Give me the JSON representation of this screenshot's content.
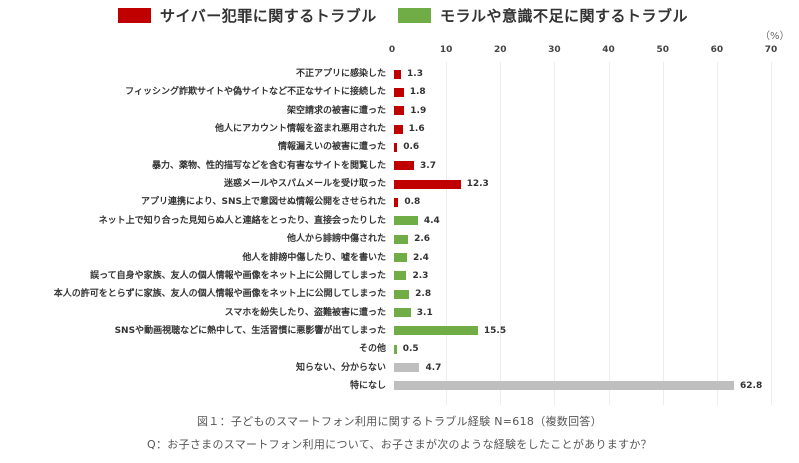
{
  "legend": [
    {
      "label": "サイバー犯罪に関するトラブル",
      "color": "#c00000"
    },
    {
      "label": "モラルや意識不足に関するトラブル",
      "color": "#70ad47"
    }
  ],
  "colors": {
    "cyber": "#c00000",
    "moral": "#70ad47",
    "other": "#bfbfbf"
  },
  "axis": {
    "unit": "（%）",
    "ticks": [
      "0",
      "10",
      "20",
      "30",
      "40",
      "50",
      "60",
      "70"
    ]
  },
  "chart_data": {
    "type": "bar",
    "orientation": "horizontal",
    "title": "図１：子どものスマートフォン利用に関するトラブル経験 N=618（複数回答）",
    "xlabel": "（%）",
    "xlim": [
      0,
      70
    ],
    "grid": true,
    "legend_position": "top",
    "categories": [
      "不正アプリに感染した",
      "フィッシング詐欺サイトや偽サイトなど不正なサイトに接続した",
      "架空請求の被害に遭った",
      "他人にアカウント情報を盗まれ悪用された",
      "情報漏えいの被害に遭った",
      "暴力、薬物、性的描写などを含む有害なサイトを閲覧した",
      "迷惑メールやスパムメールを受け取った",
      "アプリ連携により、SNS上で意図せぬ情報公開をさせられた",
      "ネット上で知り合った見知らぬ人と連絡をとったり、直接会ったりした",
      "他人から誹謗中傷された",
      "他人を誹謗中傷したり、嘘を書いた",
      "誤って自身や家族、友人の個人情報や画像をネット上に公開してしまった",
      "本人の許可をとらずに家族、友人の個人情報や画像をネット上に公開してしまった",
      "スマホを紛失したり、盗難被害に遭った",
      "SNSや動画視聴などに熱中して、生活習慣に悪影響が出てしまった",
      "その他",
      "知らない、分からない",
      "特になし"
    ],
    "values": [
      1.3,
      1.8,
      1.9,
      1.6,
      0.6,
      3.7,
      12.3,
      0.8,
      4.4,
      2.6,
      2.4,
      2.3,
      2.8,
      3.1,
      15.5,
      0.5,
      4.7,
      62.8
    ],
    "groups": [
      "cyber",
      "cyber",
      "cyber",
      "cyber",
      "cyber",
      "cyber",
      "cyber",
      "cyber",
      "moral",
      "moral",
      "moral",
      "moral",
      "moral",
      "moral",
      "moral",
      "moral",
      "other",
      "other"
    ],
    "series": [
      {
        "name": "サイバー犯罪に関するトラブル",
        "color": "#c00000"
      },
      {
        "name": "モラルや意識不足に関するトラブル",
        "color": "#70ad47"
      }
    ]
  },
  "caption": {
    "figure": "図１：子どものスマートフォン利用に関するトラブル経験 N=618（複数回答）",
    "question": "Q：お子さまのスマートフォン利用について、お子さまが次のような経験をしたことがありますか？"
  }
}
